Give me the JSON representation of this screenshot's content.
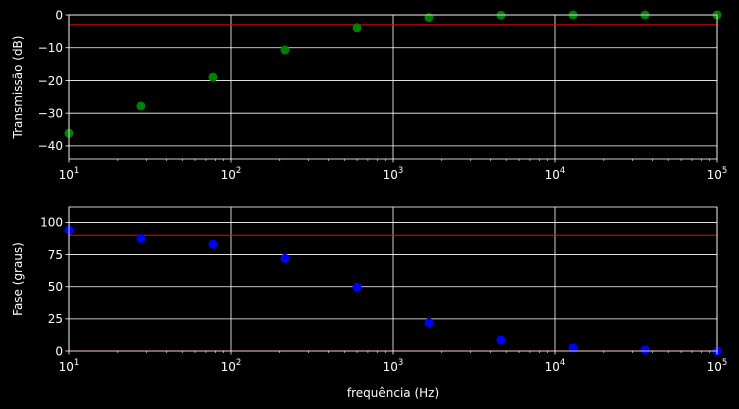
{
  "chart_data": [
    {
      "type": "scatter",
      "xscale": "log",
      "x_tick_values": [
        10,
        100,
        1000,
        10000,
        100000
      ],
      "x_tick_labels": [
        {
          "base": "10",
          "exp": "1"
        },
        {
          "base": "10",
          "exp": "2"
        },
        {
          "base": "10",
          "exp": "3"
        },
        {
          "base": "10",
          "exp": "4"
        },
        {
          "base": "10",
          "exp": "5"
        }
      ],
      "xlim": [
        10,
        100000
      ],
      "ylim": [
        -44,
        0
      ],
      "y_ticks": [
        0,
        -10,
        -20,
        -30,
        -40
      ],
      "y_tick_labels": [
        "0",
        "−10",
        "−20",
        "−30",
        "−40"
      ],
      "xlabel": "",
      "ylabel": "Transmissão (dB)",
      "grid": true,
      "series": [
        {
          "color": "#008000",
          "x": [
            10,
            27.8,
            77.4,
            215.4,
            599.5,
            1668,
            4642,
            12915,
            35938,
            100000
          ],
          "y": [
            -36.1,
            -27.8,
            -19.0,
            -10.7,
            -3.9,
            -0.8,
            -0.1,
            0.0,
            0.0,
            0.0
          ]
        }
      ],
      "hlines": [
        {
          "y": -3,
          "color": "#ff0000"
        }
      ]
    },
    {
      "type": "scatter",
      "xscale": "log",
      "x_tick_values": [
        10,
        100,
        1000,
        10000,
        100000
      ],
      "x_tick_labels": [
        {
          "base": "10",
          "exp": "1"
        },
        {
          "base": "10",
          "exp": "2"
        },
        {
          "base": "10",
          "exp": "3"
        },
        {
          "base": "10",
          "exp": "4"
        },
        {
          "base": "10",
          "exp": "5"
        }
      ],
      "xlim": [
        10,
        100000
      ],
      "ylim": [
        0,
        112
      ],
      "y_ticks": [
        0,
        25,
        50,
        75,
        100
      ],
      "y_tick_labels": [
        "0",
        "25",
        "50",
        "75",
        "100"
      ],
      "xlabel": "frequência (Hz)",
      "ylabel": "Fase (graus)",
      "grid": true,
      "series": [
        {
          "color": "#0000ff",
          "x": [
            10,
            27.8,
            77.4,
            215.4,
            599.5,
            1668,
            4642,
            12915,
            35938,
            100000
          ],
          "y": [
            94,
            87.5,
            83,
            72,
            49.5,
            22,
            8.5,
            2.5,
            1,
            0
          ]
        }
      ],
      "hlines": [
        {
          "y": 90,
          "color": "#ff0000"
        },
        {
          "y": 0,
          "color": "#ff0000"
        }
      ]
    }
  ]
}
